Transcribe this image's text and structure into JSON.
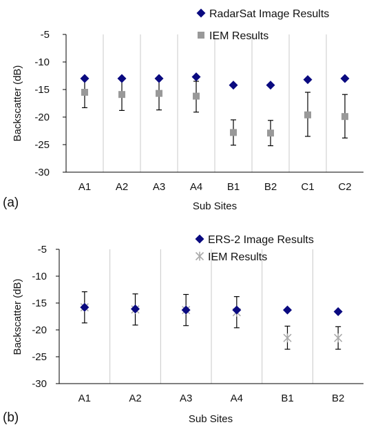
{
  "chart_data": [
    {
      "type": "scatter",
      "panel_label": "(a)",
      "xlabel": "Sub Sites",
      "ylabel": "Backscatter (dB)",
      "ylim": [
        -30,
        -5
      ],
      "yticks": [
        "-5",
        "-10",
        "-15",
        "-20",
        "-25",
        "-30"
      ],
      "categories": [
        "A1",
        "A2",
        "A3",
        "A4",
        "B1",
        "B2",
        "C1",
        "C2"
      ],
      "legend_position": "top-right",
      "grid": "vertical category separators",
      "series": [
        {
          "name": "RadarSat Image Results",
          "marker": "diamond",
          "color": "#0a0a80",
          "values": [
            -13.0,
            -13.0,
            -13.0,
            -12.7,
            -14.2,
            -14.2,
            -13.2,
            -13.0
          ]
        },
        {
          "name": "IEM Results",
          "marker": "square",
          "color": "#999999",
          "values": [
            -15.5,
            -15.9,
            -15.7,
            -16.2,
            -22.8,
            -22.9,
            -19.6,
            -19.9
          ],
          "error_low": [
            -18.3,
            -18.8,
            -18.7,
            -19.1,
            -25.1,
            -25.2,
            -23.5,
            -23.8
          ],
          "error_high": [
            -13.0,
            -13.0,
            -13.0,
            -13.5,
            -20.5,
            -20.6,
            -15.5,
            -15.9
          ]
        }
      ]
    },
    {
      "type": "scatter",
      "panel_label": "(b)",
      "xlabel": "Sub Sites",
      "ylabel": "Backscatter (dB)",
      "ylim": [
        -30,
        -5
      ],
      "yticks": [
        "-5",
        "-10",
        "-15",
        "-20",
        "-25",
        "-30"
      ],
      "categories": [
        "A1",
        "A2",
        "A3",
        "A4",
        "B1",
        "B2"
      ],
      "legend_position": "top-right",
      "grid": "vertical category separators",
      "series": [
        {
          "name": "ERS-2 Image Results",
          "marker": "diamond",
          "color": "#0a0a80",
          "values": [
            -15.8,
            -16.1,
            -16.3,
            -16.3,
            -16.3,
            -16.6
          ]
        },
        {
          "name": "IEM Results",
          "marker": "asterisk",
          "color": "#aaaaaa",
          "values": [
            -15.8,
            -16.2,
            -16.3,
            -16.7,
            -21.5,
            -21.5
          ],
          "error_low": [
            -18.7,
            -19.1,
            -19.2,
            -19.6,
            -23.6,
            -23.6
          ],
          "error_high": [
            -12.9,
            -13.3,
            -13.4,
            -13.8,
            -19.3,
            -19.4
          ]
        }
      ]
    }
  ]
}
